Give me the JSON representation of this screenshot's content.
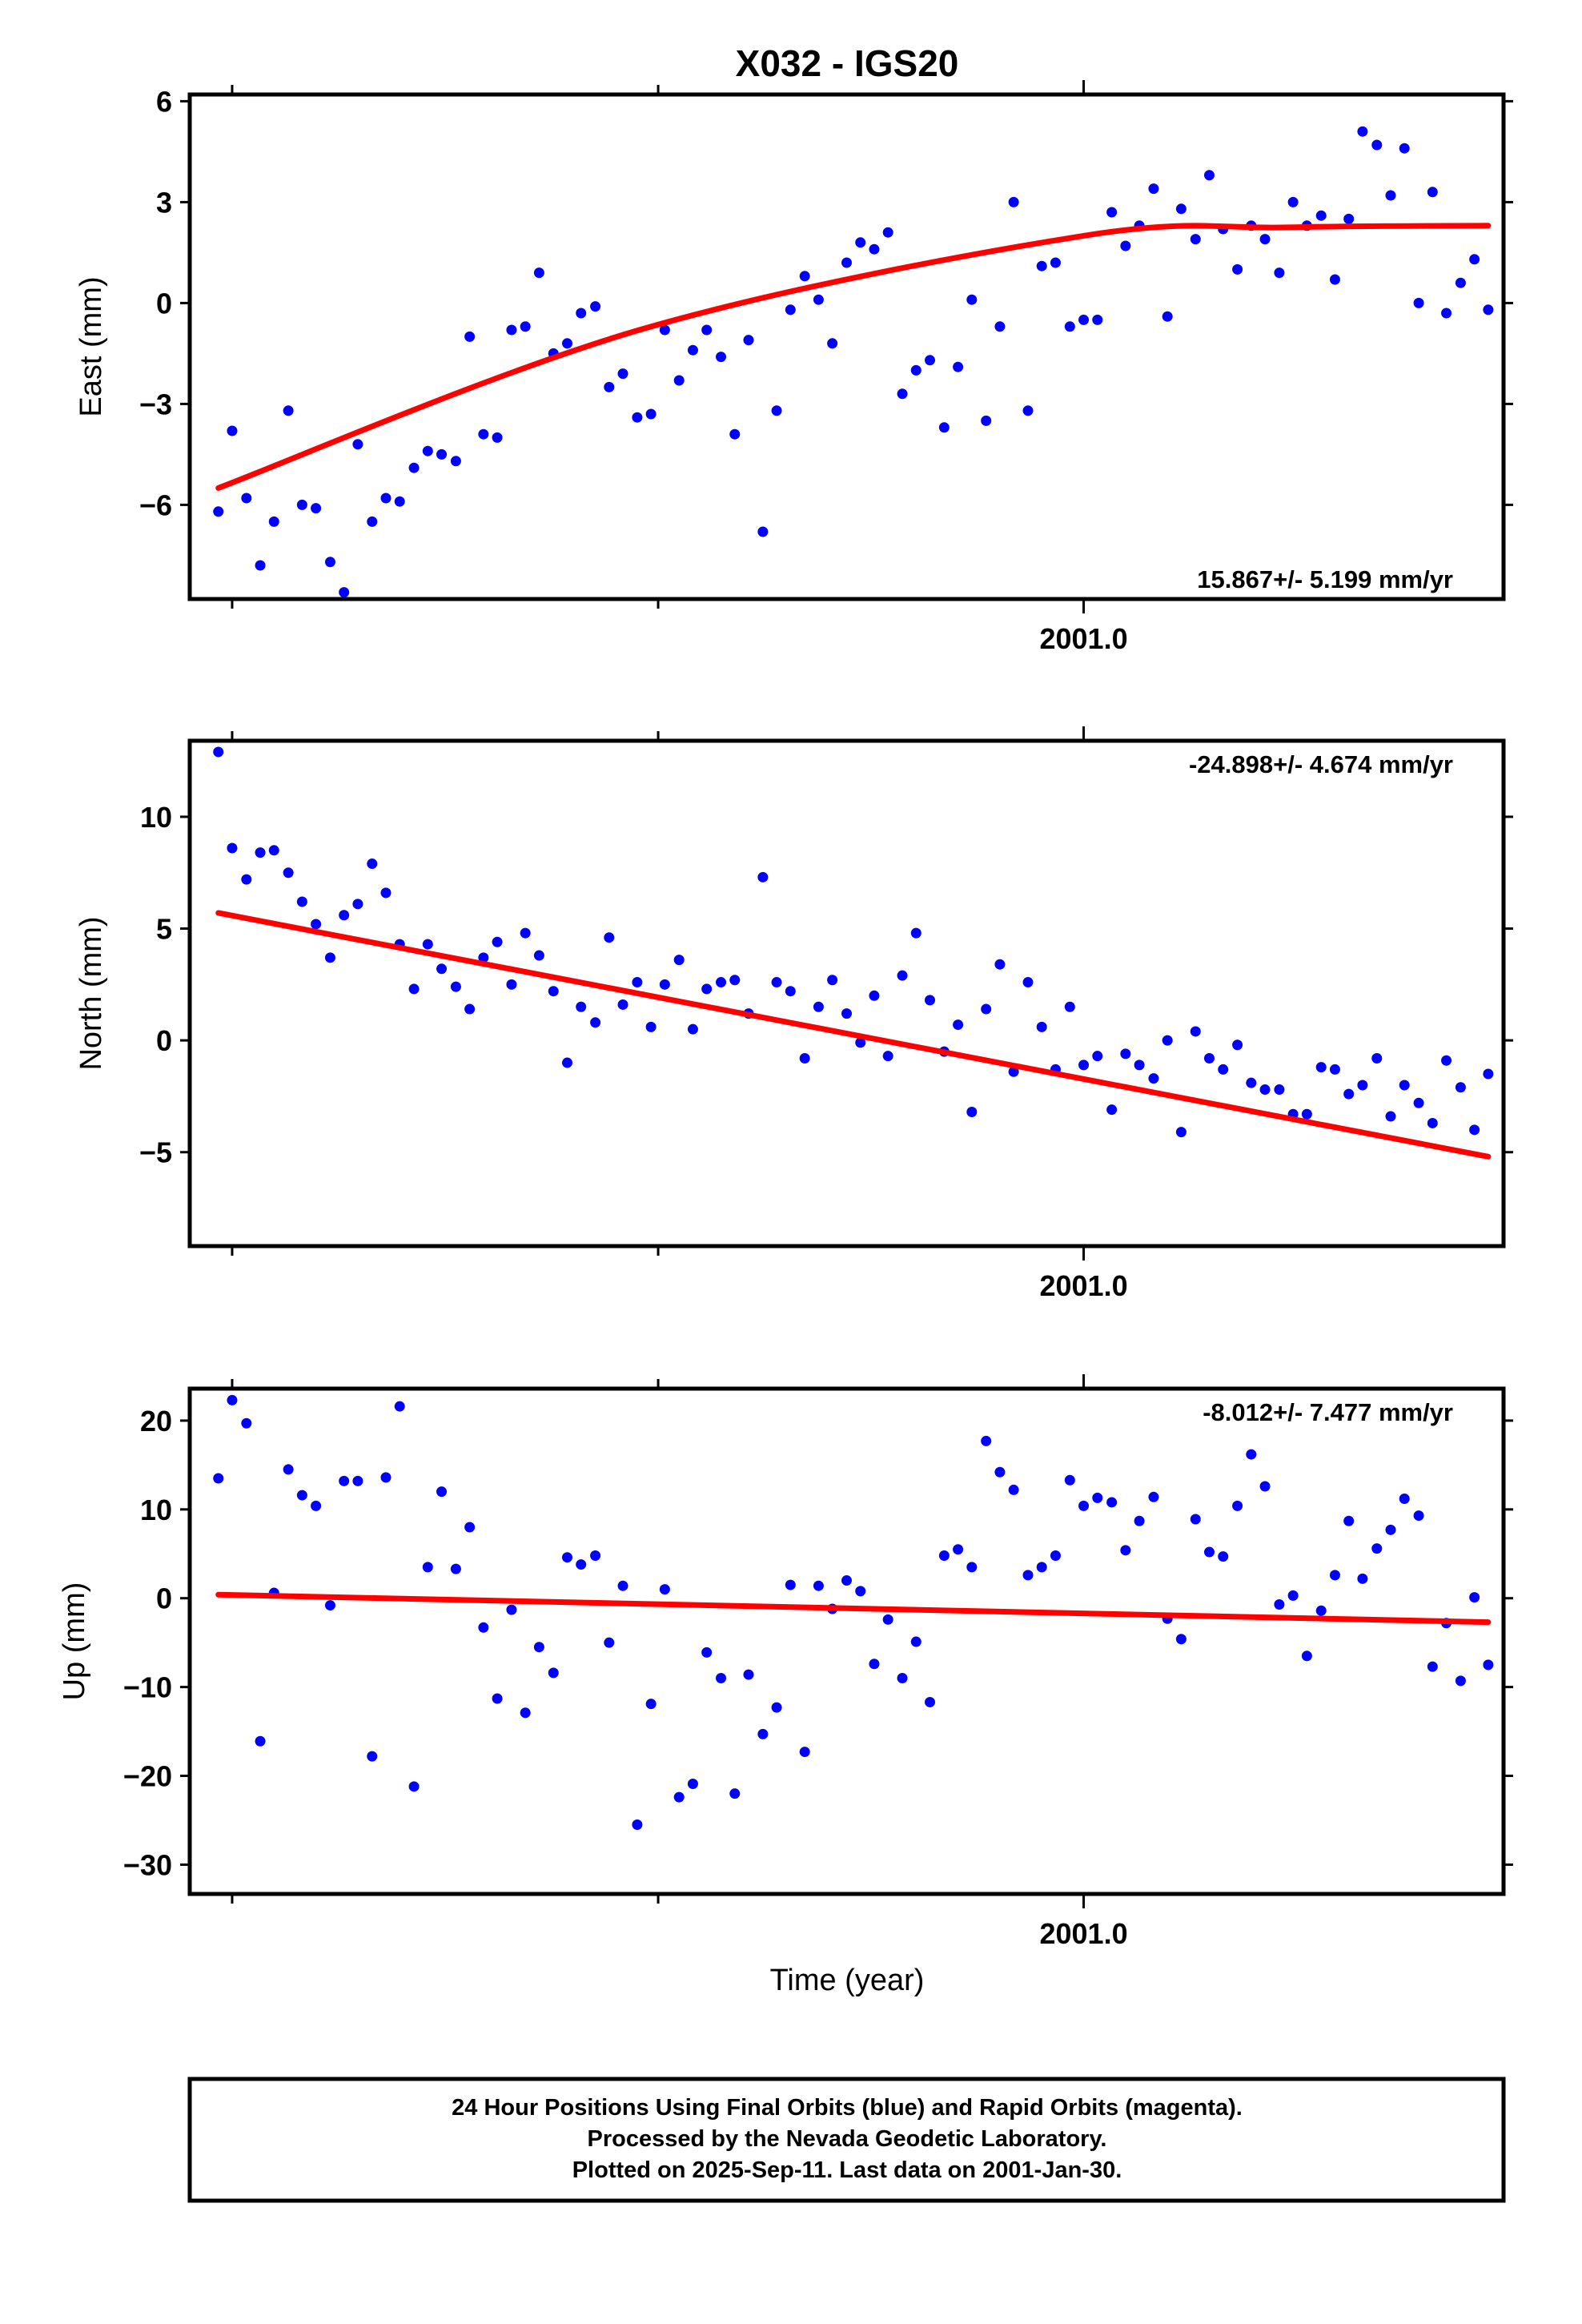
{
  "title": "X032 - IGS20",
  "xlabel": "Time (year)",
  "caption": {
    "lines": [
      "24 Hour Positions Using Final Orbits (blue) and Rapid Orbits (magenta).",
      "Processed by the Nevada Geodetic Laboratory.",
      "Plotted on 2025-Sep-11. Last data on 2001-Jan-30."
    ]
  },
  "colors": {
    "final_orbits": "#0000ff",
    "rapid_orbits": "#ff00ff",
    "trend": "#ff0000",
    "frame": "#000000"
  },
  "chart_data": [
    {
      "type": "scatter",
      "component": "east",
      "ylabel": "East (mm)",
      "rate_label": "15.867+/- 5.199 mm/yr",
      "xlim": [
        2000.825,
        2001.0822
      ],
      "ylim": [
        -8.8,
        6.2
      ],
      "yticks": [
        -6,
        -3,
        0,
        3,
        6
      ],
      "xticks_minor": [
        2000.8333,
        2000.9167
      ],
      "xticks_labeled": [
        {
          "value": 2001.0,
          "label": "2001.0"
        }
      ],
      "grid": false,
      "x": [
        2000.8306,
        2000.8333,
        2000.8361,
        2000.8388,
        2000.8415,
        2000.8443,
        2000.847,
        2000.8497,
        2000.8525,
        2000.8552,
        2000.8579,
        2000.8607,
        2000.8634,
        2000.8661,
        2000.8689,
        2000.8716,
        2000.8743,
        2000.8771,
        2000.8798,
        2000.8825,
        2000.8852,
        2000.888,
        2000.8907,
        2000.8934,
        2000.8962,
        2000.8989,
        2000.9016,
        2000.9044,
        2000.9071,
        2000.9098,
        2000.9126,
        2000.9153,
        2000.918,
        2000.9208,
        2000.9235,
        2000.9262,
        2000.929,
        2000.9317,
        2000.9344,
        2000.9372,
        2000.9399,
        2000.9426,
        2000.9454,
        2000.9481,
        2000.9508,
        2000.9536,
        2000.9563,
        2000.959,
        2000.9617,
        2000.9645,
        2000.9672,
        2000.9699,
        2000.9727,
        2000.9754,
        2000.9781,
        2000.9809,
        2000.9836,
        2000.9863,
        2000.9891,
        2000.9918,
        2000.9945,
        2000.9973,
        2001.0,
        2001.0027,
        2001.0055,
        2001.0082,
        2001.0109,
        2001.0137,
        2001.0164,
        2001.0191,
        2001.0219,
        2001.0246,
        2001.0273,
        2001.0301,
        2001.0328,
        2001.0355,
        2001.0383,
        2001.041,
        2001.0437,
        2001.0465,
        2001.0492,
        2001.0519,
        2001.0546,
        2001.0574,
        2001.0601,
        2001.0628,
        2001.0656,
        2001.0683,
        2001.071,
        2001.0738,
        2001.0765,
        2001.0792
      ],
      "series": [
        {
          "y": [
            -6.2,
            -3.8,
            -5.8,
            -7.8,
            -6.5,
            -3.2,
            -6.0,
            -6.1,
            -7.7,
            -8.6,
            -4.2,
            -6.5,
            -5.8,
            -5.9,
            -4.9,
            -4.4,
            -4.5,
            -4.7,
            -1.0,
            -3.9,
            -4.0,
            -0.8,
            -0.7,
            0.9,
            -1.5,
            -1.2,
            -0.3,
            -0.1,
            -2.5,
            -2.1,
            -3.4,
            -3.3,
            -0.8,
            -2.3,
            -1.4,
            -0.8,
            -1.6,
            -3.9,
            -1.1,
            -6.8,
            -3.2,
            -0.2,
            0.8,
            0.1,
            -1.2,
            1.2,
            1.8,
            1.6,
            2.1,
            -2.7,
            -2.0,
            -1.7,
            -3.7,
            -1.9,
            0.1,
            -3.5,
            -0.7,
            3.0,
            -3.2,
            1.1,
            1.2,
            -0.7,
            -0.5,
            -0.5,
            2.7,
            1.7,
            2.3,
            3.4,
            -0.4,
            2.8,
            1.9,
            3.8,
            2.2,
            1.0,
            2.3,
            1.9,
            0.9,
            3.0,
            2.3,
            2.6,
            0.7,
            2.5,
            5.1,
            4.7,
            3.2,
            4.6,
            0.0,
            3.3,
            -0.3,
            0.6,
            1.3,
            -0.2
          ]
        }
      ],
      "trend": {
        "x": [
          2000.8306,
          2000.913,
          2001.0,
          2001.04,
          2001.0792
        ],
        "y": [
          -5.5,
          -0.8,
          2.0,
          2.25,
          2.3
        ]
      }
    },
    {
      "type": "scatter",
      "component": "north",
      "ylabel": "North (mm)",
      "rate_label": "-24.898+/- 4.674 mm/yr",
      "xlim": [
        2000.825,
        2001.0822
      ],
      "ylim": [
        -9.2,
        13.4
      ],
      "yticks": [
        -5,
        0,
        5,
        10
      ],
      "xticks_minor": [
        2000.8333,
        2000.9167
      ],
      "xticks_labeled": [
        {
          "value": 2001.0,
          "label": "2001.0"
        }
      ],
      "grid": false,
      "x": [
        2000.8306,
        2000.8333,
        2000.8361,
        2000.8388,
        2000.8415,
        2000.8443,
        2000.847,
        2000.8497,
        2000.8525,
        2000.8552,
        2000.8579,
        2000.8607,
        2000.8634,
        2000.8661,
        2000.8689,
        2000.8716,
        2000.8743,
        2000.8771,
        2000.8798,
        2000.8825,
        2000.8852,
        2000.888,
        2000.8907,
        2000.8934,
        2000.8962,
        2000.8989,
        2000.9016,
        2000.9044,
        2000.9071,
        2000.9098,
        2000.9126,
        2000.9153,
        2000.918,
        2000.9208,
        2000.9235,
        2000.9262,
        2000.929,
        2000.9317,
        2000.9344,
        2000.9372,
        2000.9399,
        2000.9426,
        2000.9454,
        2000.9481,
        2000.9508,
        2000.9536,
        2000.9563,
        2000.959,
        2000.9617,
        2000.9645,
        2000.9672,
        2000.9699,
        2000.9727,
        2000.9754,
        2000.9781,
        2000.9809,
        2000.9836,
        2000.9863,
        2000.9891,
        2000.9918,
        2000.9945,
        2000.9973,
        2001.0,
        2001.0027,
        2001.0055,
        2001.0082,
        2001.0109,
        2001.0137,
        2001.0164,
        2001.0191,
        2001.0219,
        2001.0246,
        2001.0273,
        2001.0301,
        2001.0328,
        2001.0355,
        2001.0383,
        2001.041,
        2001.0437,
        2001.0465,
        2001.0492,
        2001.0519,
        2001.0546,
        2001.0574,
        2001.0601,
        2001.0628,
        2001.0656,
        2001.0683,
        2001.071,
        2001.0738,
        2001.0765,
        2001.0792
      ],
      "series": [
        {
          "y": [
            12.9,
            8.6,
            7.2,
            8.4,
            8.5,
            7.5,
            6.2,
            5.2,
            3.7,
            5.6,
            6.1,
            7.9,
            6.6,
            4.3,
            2.3,
            4.3,
            3.2,
            2.4,
            1.4,
            3.7,
            4.4,
            2.5,
            4.8,
            3.8,
            2.2,
            -1.0,
            1.5,
            0.8,
            4.6,
            1.6,
            2.6,
            0.6,
            2.5,
            3.6,
            0.5,
            2.3,
            2.6,
            2.7,
            1.2,
            7.3,
            2.6,
            2.2,
            -0.8,
            1.5,
            2.7,
            1.2,
            -0.1,
            2.0,
            -0.7,
            2.9,
            4.8,
            1.8,
            -0.5,
            0.7,
            -3.2,
            1.4,
            3.4,
            -1.4,
            2.6,
            0.6,
            -1.3,
            1.5,
            -1.1,
            -0.7,
            -3.1,
            -0.6,
            -1.1,
            -1.7,
            0.0,
            -4.1,
            0.4,
            -0.8,
            -1.3,
            -0.2,
            -1.9,
            -2.2,
            -2.2,
            -3.3,
            -3.3,
            -1.2,
            -1.3,
            -2.4,
            -2.0,
            -0.8,
            -3.4,
            -2.0,
            -2.8,
            -3.7,
            -0.9,
            -2.1,
            -4.0,
            -1.5
          ]
        }
      ],
      "trend": {
        "x": [
          2000.8306,
          2001.0792
        ],
        "y": [
          5.7,
          -5.2
        ]
      }
    },
    {
      "type": "scatter",
      "component": "up",
      "ylabel": "Up (mm)",
      "rate_label": "-8.012+/- 7.477 mm/yr",
      "xlim": [
        2000.825,
        2001.0822
      ],
      "ylim": [
        -33.3,
        23.6
      ],
      "yticks": [
        -30,
        -20,
        -10,
        0,
        10,
        20
      ],
      "xticks_minor": [
        2000.8333,
        2000.9167
      ],
      "xticks_labeled": [
        {
          "value": 2001.0,
          "label": "2001.0"
        }
      ],
      "grid": false,
      "x": [
        2000.8306,
        2000.8333,
        2000.8361,
        2000.8388,
        2000.8415,
        2000.8443,
        2000.847,
        2000.8497,
        2000.8525,
        2000.8552,
        2000.8579,
        2000.8607,
        2000.8634,
        2000.8661,
        2000.8689,
        2000.8716,
        2000.8743,
        2000.8771,
        2000.8798,
        2000.8825,
        2000.8852,
        2000.888,
        2000.8907,
        2000.8934,
        2000.8962,
        2000.8989,
        2000.9016,
        2000.9044,
        2000.9071,
        2000.9098,
        2000.9126,
        2000.9153,
        2000.918,
        2000.9208,
        2000.9235,
        2000.9262,
        2000.929,
        2000.9317,
        2000.9344,
        2000.9372,
        2000.9399,
        2000.9426,
        2000.9454,
        2000.9481,
        2000.9508,
        2000.9536,
        2000.9563,
        2000.959,
        2000.9617,
        2000.9645,
        2000.9672,
        2000.9699,
        2000.9727,
        2000.9754,
        2000.9781,
        2000.9809,
        2000.9836,
        2000.9863,
        2000.9891,
        2000.9918,
        2000.9945,
        2000.9973,
        2001.0,
        2001.0027,
        2001.0055,
        2001.0082,
        2001.0109,
        2001.0137,
        2001.0164,
        2001.0191,
        2001.0219,
        2001.0246,
        2001.0273,
        2001.0301,
        2001.0328,
        2001.0355,
        2001.0383,
        2001.041,
        2001.0437,
        2001.0465,
        2001.0492,
        2001.0519,
        2001.0546,
        2001.0574,
        2001.0601,
        2001.0628,
        2001.0656,
        2001.0683,
        2001.071,
        2001.0738,
        2001.0765,
        2001.0792
      ],
      "series": [
        {
          "y": [
            13.5,
            22.3,
            19.7,
            -16.1,
            0.6,
            14.5,
            11.6,
            10.4,
            -0.8,
            13.2,
            13.2,
            -17.8,
            13.6,
            21.6,
            -21.2,
            3.5,
            12.0,
            3.3,
            8.0,
            -3.3,
            -11.3,
            -1.3,
            -12.9,
            -5.5,
            -8.4,
            4.6,
            3.8,
            4.8,
            -5.0,
            1.4,
            -25.5,
            -11.9,
            1.0,
            -22.4,
            -20.9,
            -6.1,
            -9.0,
            -22.0,
            -8.6,
            -15.3,
            -12.3,
            1.5,
            -17.3,
            1.4,
            -1.2,
            2.0,
            0.8,
            -7.4,
            -2.4,
            -9.0,
            -4.9,
            -11.7,
            4.8,
            5.5,
            3.5,
            17.7,
            14.2,
            12.2,
            2.6,
            3.5,
            4.8,
            13.3,
            10.4,
            11.3,
            10.8,
            5.4,
            8.7,
            11.4,
            -2.3,
            -4.6,
            8.9,
            5.2,
            4.7,
            10.4,
            16.2,
            12.6,
            -0.7,
            0.3,
            -6.5,
            -1.4,
            2.6,
            8.7,
            2.2,
            5.6,
            7.7,
            11.2,
            9.3,
            -7.7,
            -2.8,
            -9.3,
            0.1,
            -7.5
          ]
        }
      ],
      "trend": {
        "x": [
          2000.8306,
          2001.0792
        ],
        "y": [
          0.4,
          -2.7
        ]
      }
    }
  ]
}
